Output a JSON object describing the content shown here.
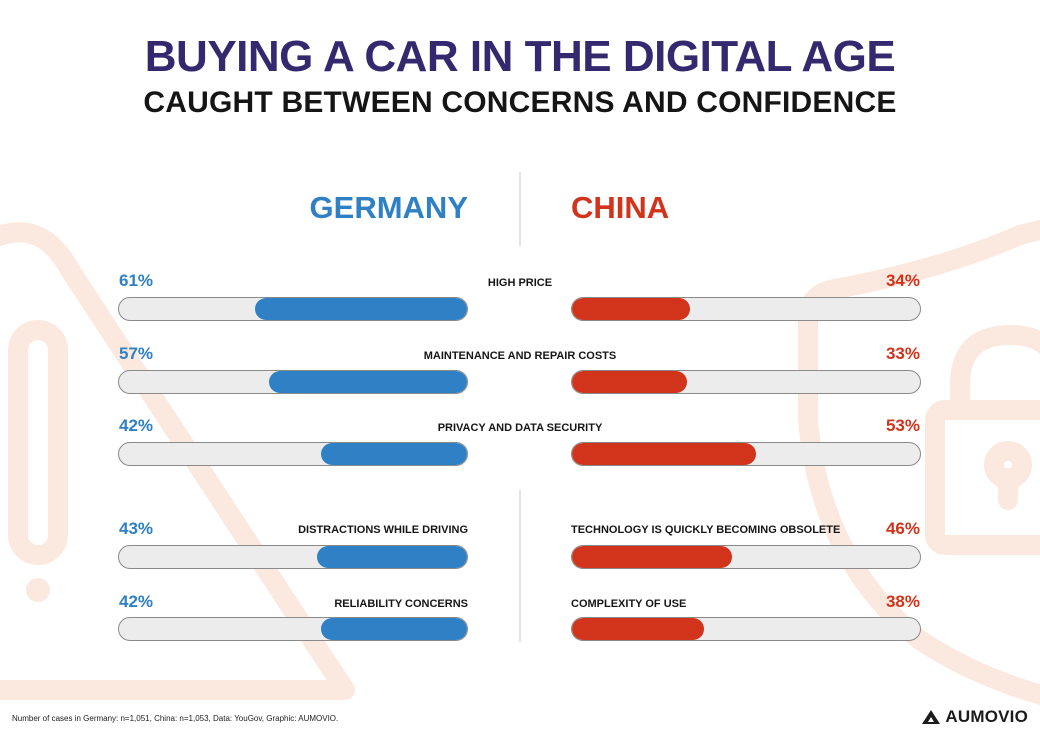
{
  "chart_data": {
    "type": "bar",
    "title": "BUYING A CAR IN THE DIGITAL AGE",
    "subtitle": "CAUGHT BETWEEN CONCERNS AND CONFIDENCE",
    "series": [
      {
        "name": "GERMANY",
        "color": "#2f80c4"
      },
      {
        "name": "CHINA",
        "color": "#d1331b"
      }
    ],
    "categories": [
      {
        "label": "HIGH PRICE",
        "germany": 61,
        "china": 34,
        "germany_text": "61%",
        "china_text": "34%"
      },
      {
        "label": "MAINTENANCE AND REPAIR COSTS",
        "germany": 57,
        "china": 33,
        "germany_text": "57%",
        "china_text": "33%"
      },
      {
        "label": "PRIVACY AND DATA SECURITY",
        "germany": 42,
        "china": 53,
        "germany_text": "42%",
        "china_text": "53%"
      }
    ],
    "germany_only": [
      {
        "label": "DISTRACTIONS WHILE DRIVING",
        "value": 43,
        "text": "43%"
      },
      {
        "label": "RELIABILITY CONCERNS",
        "value": 42,
        "text": "42%"
      }
    ],
    "china_only": [
      {
        "label": "TECHNOLOGY IS QUICKLY BECOMING OBSOLETE",
        "value": 46,
        "text": "46%"
      },
      {
        "label": "COMPLEXITY OF USE",
        "value": 38,
        "text": "38%"
      }
    ],
    "ylim": [
      0,
      100
    ]
  },
  "footnote": "Number of cases in Germany: n=1,051, China: n=1,053, Data: YouGov, Graphic: AUMOVIO.",
  "brand": {
    "name": "AUMOVIO"
  },
  "colors": {
    "title": "#34296e",
    "germany": "#2f80c4",
    "china": "#d1331b",
    "track": "#ececec",
    "decor": "#fbe9df"
  },
  "icons": [
    "warning-triangle-icon",
    "shield-lock-icon",
    "aumovio-logo-icon"
  ]
}
